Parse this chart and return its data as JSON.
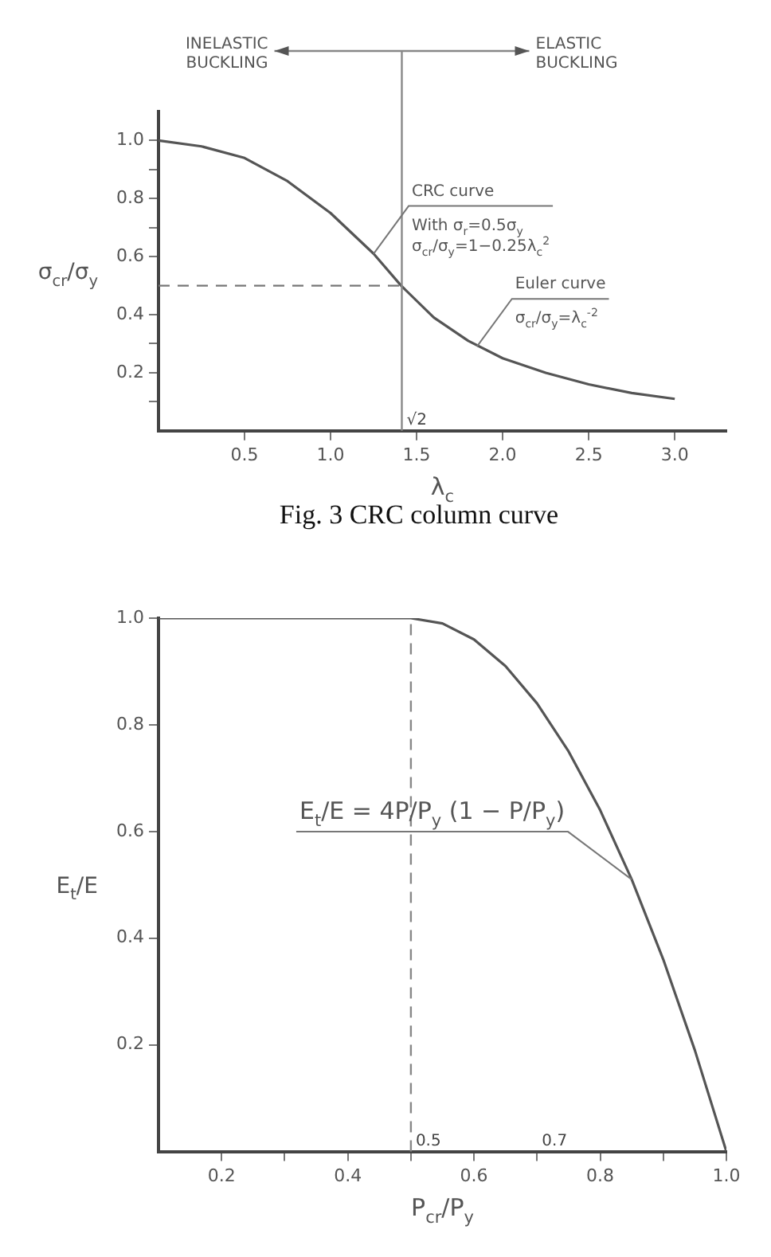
{
  "chart_data": [
    {
      "type": "line",
      "title": "Fig. 3 CRC column curve",
      "xlabel": "λ$_{c}$",
      "ylabel": "σ$_{cr}$/σ$_{y}$",
      "x": [
        0,
        0.25,
        0.5,
        0.75,
        1.0,
        1.25,
        1.41,
        1.6,
        1.8,
        2.0,
        2.25,
        2.5,
        2.75,
        3.0
      ],
      "series": [
        {
          "color": "#555555",
          "values": [
            1.0,
            0.98,
            0.94,
            0.86,
            0.75,
            0.61,
            0.5,
            0.39,
            0.31,
            0.25,
            0.2,
            0.16,
            0.13,
            0.11
          ]
        }
      ],
      "xlim": [
        0,
        3.3
      ],
      "ylim": [
        0,
        1.1
      ],
      "xticks": [
        0.5,
        {
          "value": 1,
          "label": "1.0"
        },
        1.5,
        {
          "value": 2,
          "label": "2.0"
        },
        2.5,
        {
          "value": 3,
          "label": "3.0"
        }
      ],
      "yticks": [
        {
          "value": 0.1,
          "label": null
        },
        0.2,
        {
          "value": 0.3,
          "label": null
        },
        0.4,
        0.6,
        {
          "value": 0.7,
          "label": null
        },
        0.8,
        {
          "value": 0.9,
          "label": null
        },
        {
          "value": 1,
          "label": "1.0"
        }
      ],
      "ref_lines": [
        {
          "axis": "x",
          "value": 1.414,
          "label": "√2",
          "color": "#888888"
        },
        {
          "axis": "y",
          "value": 0.5,
          "color": "#777777",
          "line_style": "dashed"
        }
      ],
      "annotations": [
        "INELASTIC\nBUCKLING",
        "ELASTIC\nBUCKLING",
        {
          "text": "CRC curve",
          "x": 1.25,
          "y": 0.61
        },
        "With σ$_{r}$=0.5σ$_{y}$",
        "σ$_{cr}$/σ$_{y}$=1−0.25λ$_{c}$$^{2}$",
        {
          "text": "Euler curve",
          "x": 1.85,
          "y": 0.29
        },
        "σ$_{cr}$/σ$_{y}$=λ$_{c}$$^{-2}$"
      ],
      "grid": false
    },
    {
      "type": "line",
      "xlabel": "P$_{cr}$/P$_{y}$",
      "ylabel": "E$_{t}$/E",
      "x": [
        0.1,
        0.5,
        0.55,
        0.6,
        0.65,
        0.7,
        0.75,
        0.8,
        0.85,
        0.9,
        0.95,
        1.0
      ],
      "series": [
        {
          "color": "#555555",
          "values": [
            1.0,
            1.0,
            0.99,
            0.96,
            0.91,
            0.84,
            0.75,
            0.64,
            0.51,
            0.36,
            0.19,
            0
          ]
        }
      ],
      "xlim": [
        0.1,
        1.0
      ],
      "ylim": [
        0,
        1.0
      ],
      "xticks": [
        0.2,
        {
          "value": 0.3,
          "label": null
        },
        0.4,
        {
          "value": 0.5,
          "label": null
        },
        0.6,
        {
          "value": 0.7,
          "label": null
        },
        0.8,
        {
          "value": 0.9,
          "label": null
        },
        {
          "value": 1,
          "label": "1.0"
        }
      ],
      "yticks": [
        0.2,
        0.4,
        0.6,
        0.8,
        {
          "value": 1,
          "label": "1.0"
        }
      ],
      "ref_lines": [
        {
          "axis": "x",
          "value": 0.5,
          "label": "0.5",
          "color": "#888888",
          "line_style": "dashed"
        }
      ],
      "annotations": [
        "0.7",
        {
          "text": "E$_{t}$/E = 4P/P$_{y}$ (1 − P/P$_{y}$)",
          "x": 0.85,
          "y": 0.51
        }
      ],
      "grid": false
    }
  ]
}
